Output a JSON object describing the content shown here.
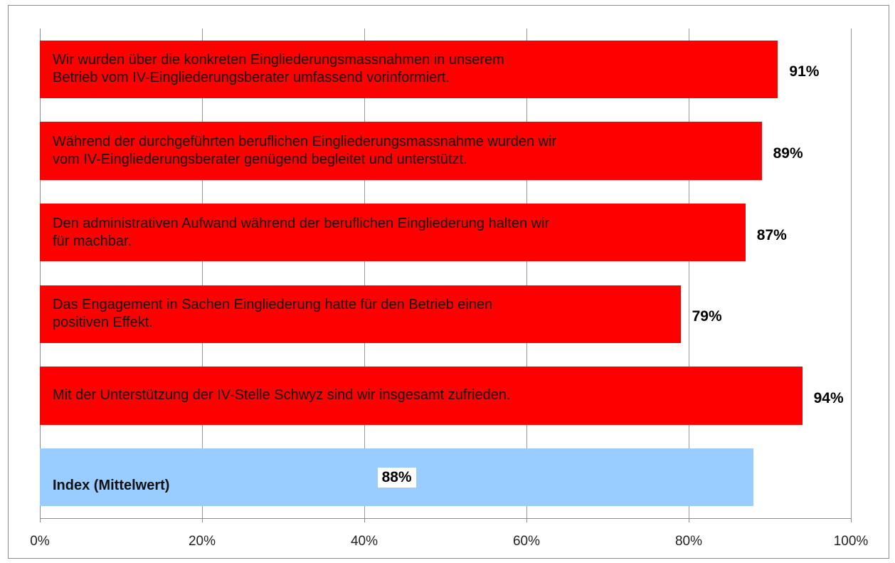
{
  "chart_data": {
    "type": "bar",
    "orientation": "horizontal",
    "categories": [
      "Wir wurden über die konkreten Eingliederungsmassnahmen  in unserem\nBetrieb vom IV-Eingliederungsberater umfassend vorinformiert.",
      "Während der durchgeführten beruflichen Eingliederungsmassnahme wurden wir\nvom IV-Eingliederungsberater genügend begleitet und unterstützt.",
      "Den administrativen Aufwand während der beruflichen Eingliederung halten wir\nfür machbar.",
      "Das Engagement in Sachen Eingliederung hatte für den Betrieb einen\npositiven Effekt.",
      "Mit der Unterstützung  der IV-Stelle Schwyz sind wir insgesamt zufrieden.",
      "Index (Mittelwert)"
    ],
    "values": [
      91,
      89,
      87,
      79,
      94,
      88
    ],
    "value_labels": [
      "91%",
      "89%",
      "87%",
      "79%",
      "94%",
      "88%"
    ],
    "colors": [
      "#ff0000",
      "#ff0000",
      "#ff0000",
      "#ff0000",
      "#ff0000",
      "#99ccff"
    ],
    "xlim": [
      0,
      100
    ],
    "xticks": [
      {
        "value": 0,
        "label": "0%"
      },
      {
        "value": 20,
        "label": "20%"
      },
      {
        "value": 40,
        "label": "40%"
      },
      {
        "value": 60,
        "label": "60%"
      },
      {
        "value": 80,
        "label": "80%"
      },
      {
        "value": 100,
        "label": "100%"
      }
    ],
    "grid": true
  }
}
